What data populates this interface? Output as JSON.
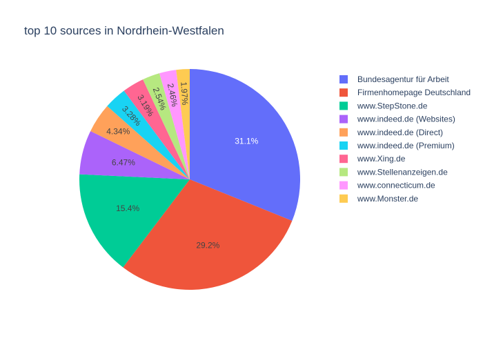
{
  "chart_data": {
    "type": "pie",
    "title": "top 10 sources in Nordrhein-Westfalen",
    "legend_position": "right",
    "slices": [
      {
        "label": "Bundesagentur für Arbeit",
        "value": 31.1,
        "display": "31.1%",
        "color": "#636efa",
        "label_color": "#ffffff"
      },
      {
        "label": "Firmenhomepage Deutschland",
        "value": 29.2,
        "display": "29.2%",
        "color": "#ef553b",
        "label_color": "#444444"
      },
      {
        "label": "www.StepStone.de",
        "value": 15.4,
        "display": "15.4%",
        "color": "#00cc96",
        "label_color": "#444444"
      },
      {
        "label": "www.indeed.de (Websites)",
        "value": 6.47,
        "display": "6.47%",
        "color": "#ab63fa",
        "label_color": "#444444"
      },
      {
        "label": "www.indeed.de (Direct)",
        "value": 4.34,
        "display": "4.34%",
        "color": "#ffa15a",
        "label_color": "#444444"
      },
      {
        "label": "www.indeed.de (Premium)",
        "value": 3.28,
        "display": "3.28%",
        "color": "#19d3f3",
        "label_color": "#444444"
      },
      {
        "label": "www.Xing.de",
        "value": 3.19,
        "display": "3.19%",
        "color": "#ff6692",
        "label_color": "#444444"
      },
      {
        "label": "www.Stellenanzeigen.de",
        "value": 2.54,
        "display": "2.54%",
        "color": "#b6e880",
        "label_color": "#444444"
      },
      {
        "label": "www.connecticum.de",
        "value": 2.46,
        "display": "2.46%",
        "color": "#ff97ff",
        "label_color": "#444444"
      },
      {
        "label": "www.Monster.de",
        "value": 1.97,
        "display": "1.97%",
        "color": "#fecb52",
        "label_color": "#444444"
      }
    ]
  }
}
